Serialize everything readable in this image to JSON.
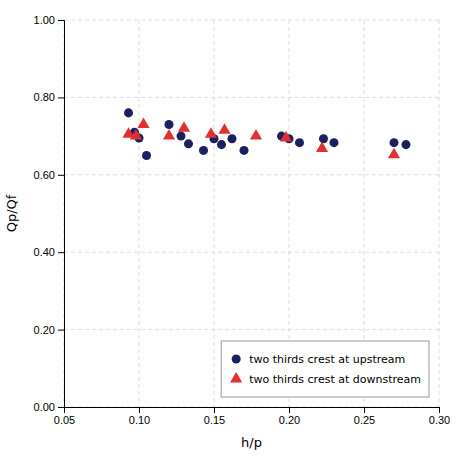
{
  "chart_data": {
    "type": "scatter",
    "xlabel": "h/p",
    "ylabel": "Qp/Qf",
    "xlim": [
      0.05,
      0.3
    ],
    "ylim": [
      0.0,
      1.0
    ],
    "xticks": [
      0.05,
      {
        "value": 0.1,
        "label": "0.10"
      },
      0.15,
      {
        "value": 0.2,
        "label": "0.20"
      },
      0.25,
      {
        "value": 0.3,
        "label": "0.30"
      }
    ],
    "yticks": [
      {
        "value": 0,
        "label": "0.00"
      },
      {
        "value": 0.2,
        "label": "0.20"
      },
      {
        "value": 0.4,
        "label": "0.40"
      },
      {
        "value": 0.6,
        "label": "0.60"
      },
      {
        "value": 0.8,
        "label": "0.80"
      },
      {
        "value": 1,
        "label": "1.00"
      }
    ],
    "grid": true,
    "legend": "lower right",
    "series": [
      {
        "name": "two thirds crest at upstream",
        "color": "#1a2060",
        "marker": "circle",
        "x": [
          0.093,
          0.097,
          0.1,
          0.105,
          0.12,
          0.128,
          0.133,
          0.143,
          0.15,
          0.155,
          0.162,
          0.17,
          0.195,
          0.2,
          0.207,
          0.223,
          0.23,
          0.27,
          0.278
        ],
        "values": [
          0.76,
          0.71,
          0.695,
          0.65,
          0.73,
          0.7,
          0.68,
          0.663,
          0.693,
          0.678,
          0.693,
          0.663,
          0.7,
          0.693,
          0.683,
          0.693,
          0.683,
          0.683,
          0.678
        ]
      },
      {
        "name": "two thirds crest at downstream",
        "color": "#e03030",
        "marker": "triangle",
        "x": [
          0.093,
          0.098,
          0.103,
          0.12,
          0.13,
          0.148,
          0.157,
          0.178,
          0.198,
          0.222,
          0.27
        ],
        "values": [
          0.705,
          0.7,
          0.73,
          0.7,
          0.72,
          0.705,
          0.715,
          0.7,
          0.695,
          0.668,
          0.652
        ]
      }
    ]
  }
}
